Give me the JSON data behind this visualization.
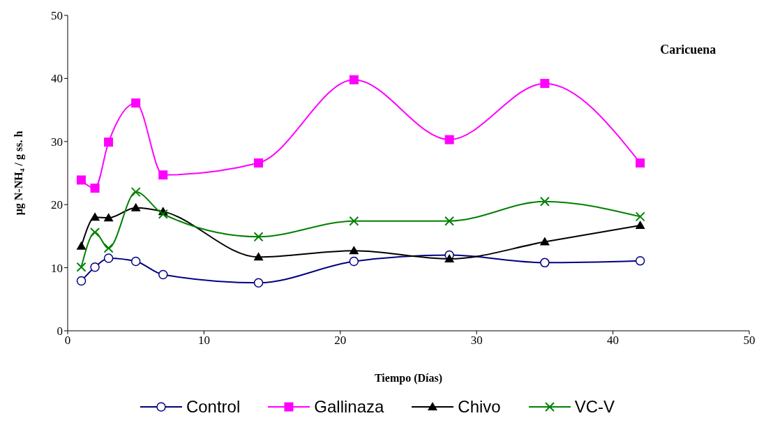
{
  "chart_data": {
    "type": "line",
    "xlabel": "Tiempo (Días)",
    "ylabel": "μg N-NH₄ / g ss. h",
    "annotations": [
      "Caricuena"
    ],
    "x": [
      1,
      2,
      3,
      5,
      7,
      14,
      21,
      28,
      35,
      42
    ],
    "xlim": [
      0,
      50
    ],
    "xticks": [
      0,
      10,
      20,
      30,
      40,
      50
    ],
    "ylim": [
      0,
      50
    ],
    "yticks": [
      0,
      10,
      20,
      30,
      40,
      50
    ],
    "grid": false,
    "legend": "bottom",
    "line_style": "solid",
    "series": [
      {
        "name": "Control",
        "color": "#000080",
        "marker": "circle",
        "values": [
          7.9,
          10.1,
          11.5,
          11.0,
          8.9,
          7.6,
          11.0,
          12.0,
          10.8,
          11.1
        ]
      },
      {
        "name": "Gallinaza",
        "color": "#ff00ff",
        "marker": "square",
        "values": [
          23.9,
          22.6,
          29.9,
          36.1,
          24.7,
          26.6,
          39.8,
          30.3,
          39.2,
          26.6
        ]
      },
      {
        "name": "Chivo",
        "color": "#000000",
        "marker": "triangle",
        "values": [
          13.4,
          18.0,
          17.9,
          19.5,
          18.9,
          11.7,
          12.7,
          11.4,
          14.1,
          16.7
        ]
      },
      {
        "name": "VC-V",
        "color": "#008000",
        "marker": "cross",
        "values": [
          10.1,
          15.6,
          13.1,
          22.0,
          18.5,
          14.9,
          17.4,
          17.4,
          20.5,
          18.1
        ]
      }
    ]
  }
}
